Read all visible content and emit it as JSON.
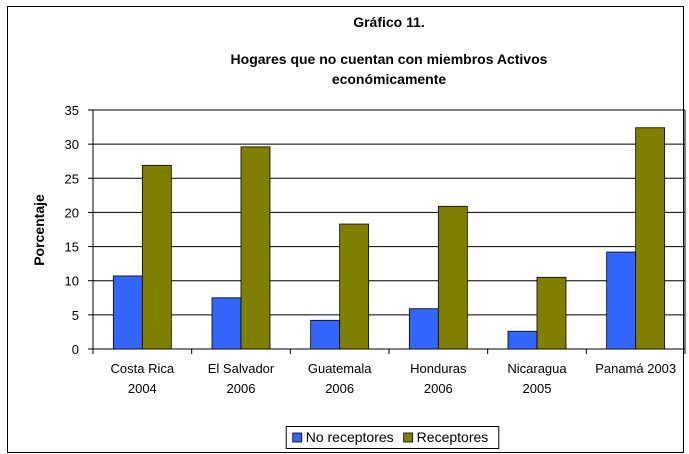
{
  "chart_data": {
    "type": "bar",
    "title": "Gráfico 11.",
    "subtitle": "Hogares que no cuentan con miembros Activos económicamente",
    "y_label": "Porcentaje",
    "categories": [
      "Costa Rica 2004",
      "El Salvador 2006",
      "Guatemala 2006",
      "Honduras 2006",
      "Nicaragua 2005",
      "Panamá 2003"
    ],
    "series": [
      {
        "name": "No receptores",
        "color": "#3366ff",
        "values": [
          10.7,
          7.5,
          4.2,
          5.9,
          2.6,
          14.2
        ]
      },
      {
        "name": "Receptores",
        "color": "#808000",
        "values": [
          26.9,
          29.6,
          18.3,
          20.9,
          10.5,
          32.4
        ]
      }
    ],
    "ylim": [
      0,
      35
    ],
    "yticks": [
      0,
      5,
      10,
      15,
      20,
      25,
      30,
      35
    ],
    "grid": true,
    "legend": "bottom"
  }
}
